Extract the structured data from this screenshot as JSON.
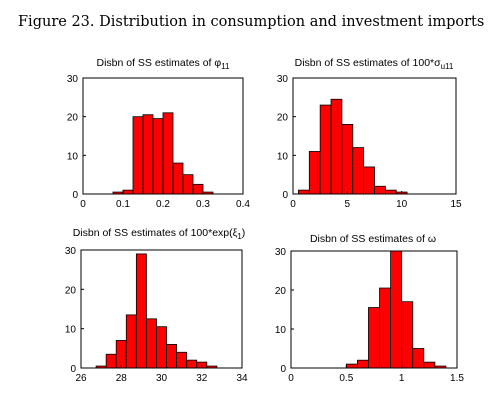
{
  "figure": {
    "title": "Figure 23. Distribution in consumption and investment imports"
  },
  "chart_data": [
    {
      "type": "bar",
      "title": "Disbn of SS estimates of φ",
      "title_sub": "11",
      "color": "#ff0000",
      "bin_edges": [
        0.075,
        0.1,
        0.125,
        0.15,
        0.175,
        0.2,
        0.225,
        0.25,
        0.275,
        0.3,
        0.325
      ],
      "values": [
        0.5,
        1,
        20,
        20.5,
        19.5,
        21,
        8,
        5,
        2.5,
        0.5
      ],
      "xlim": [
        0,
        0.4
      ],
      "ylim": [
        0,
        30
      ],
      "xticks": [
        0,
        0.1,
        0.2,
        0.3,
        0.4
      ],
      "xtick_labels": [
        "0",
        "0.1",
        "0.2",
        "0.3",
        "0.4"
      ],
      "yticks": [
        0,
        10,
        20,
        30
      ],
      "ytick_labels": [
        "0",
        "10",
        "20",
        "30"
      ]
    },
    {
      "type": "bar",
      "title": "Disbn of SS estimates of 100*σ",
      "title_sub": "u11",
      "color": "#ff0000",
      "bin_edges": [
        0.5,
        1.5,
        2.5,
        3.5,
        4.5,
        5.5,
        6.5,
        7.5,
        8.5,
        9.5,
        10.5
      ],
      "values": [
        1,
        11,
        23,
        24.5,
        18,
        12,
        7,
        2,
        1,
        0.5
      ],
      "xlim": [
        0,
        15
      ],
      "ylim": [
        0,
        30
      ],
      "xticks": [
        0,
        5,
        10,
        15
      ],
      "xtick_labels": [
        "0",
        "5",
        "10",
        "15"
      ],
      "yticks": [
        0,
        10,
        20,
        30
      ],
      "ytick_labels": [
        "0",
        "10",
        "20",
        "30"
      ]
    },
    {
      "type": "bar",
      "title": "Disbn of SS estimates of 100*exp(ξ",
      "title_sub": "1",
      "title_suffix": ")",
      "color": "#ff0000",
      "bin_edges": [
        26.75,
        27.25,
        27.75,
        28.25,
        28.75,
        29.25,
        29.75,
        30.25,
        30.75,
        31.25,
        31.75,
        32.25,
        32.75
      ],
      "values": [
        0.5,
        3.5,
        7,
        13.5,
        29,
        12.5,
        10.5,
        6,
        4,
        2,
        1.5,
        0.5
      ],
      "xlim": [
        26,
        34
      ],
      "ylim": [
        0,
        30
      ],
      "xticks": [
        26,
        28,
        30,
        32,
        34
      ],
      "xtick_labels": [
        "26",
        "28",
        "30",
        "32",
        "34"
      ],
      "yticks": [
        0,
        10,
        20,
        30
      ],
      "ytick_labels": [
        "0",
        "10",
        "20",
        "30"
      ]
    },
    {
      "type": "bar",
      "title": "Disbn of SS estimates of ω",
      "color": "#ff0000",
      "bin_edges": [
        0.5,
        0.6,
        0.7,
        0.8,
        0.9,
        1.0,
        1.1,
        1.2,
        1.3,
        1.4
      ],
      "values": [
        1,
        2,
        15.5,
        20.5,
        30,
        17,
        5,
        1.5,
        0.5
      ],
      "xlim": [
        0,
        1.5
      ],
      "ylim": [
        0,
        30
      ],
      "xticks": [
        0,
        0.5,
        1,
        1.5
      ],
      "xtick_labels": [
        "0",
        "0.5",
        "1",
        "1.5"
      ],
      "yticks": [
        0,
        10,
        20,
        30
      ],
      "ytick_labels": [
        "0",
        "10",
        "20",
        "30"
      ]
    }
  ]
}
